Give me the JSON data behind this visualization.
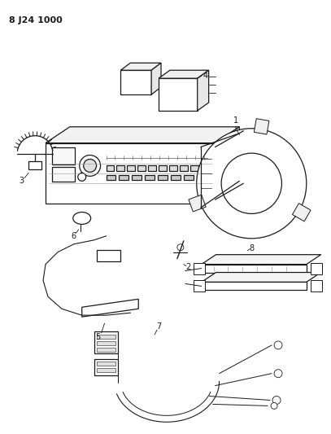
{
  "title": "8 J24 1000",
  "bg_color": "#ffffff",
  "line_color": "#1a1a1a",
  "fig_width": 4.07,
  "fig_height": 5.33,
  "dpi": 100
}
